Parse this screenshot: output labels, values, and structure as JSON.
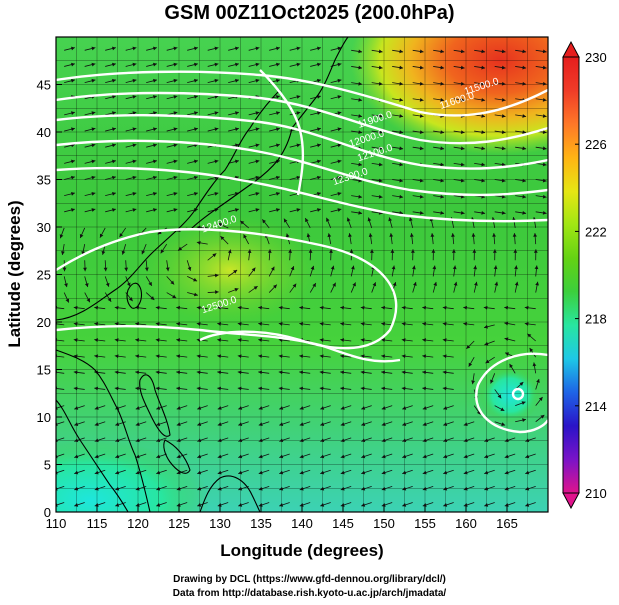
{
  "title": "GSM 00Z11Oct2025 (200.0hPa)",
  "x_axis": {
    "label": "Longitude (degrees)",
    "range": [
      110,
      170
    ],
    "ticks": [
      "110",
      "115",
      "120",
      "125",
      "130",
      "135",
      "140",
      "145",
      "150",
      "155",
      "160",
      "165"
    ],
    "tick_values": [
      110,
      115,
      120,
      125,
      130,
      135,
      140,
      145,
      150,
      155,
      160,
      165
    ]
  },
  "y_axis": {
    "label": "Latitude  (degrees)",
    "range": [
      0,
      50
    ],
    "ticks": [
      "0",
      "5",
      "10",
      "15",
      "20",
      "25",
      "30",
      "35",
      "40",
      "45"
    ],
    "tick_values": [
      0,
      5,
      10,
      15,
      20,
      25,
      30,
      35,
      40,
      45
    ]
  },
  "colorbar": {
    "min": 210,
    "max": 230,
    "labels": [
      "230",
      "226",
      "222",
      "218",
      "214",
      "210"
    ],
    "label_values": [
      230,
      226,
      222,
      218,
      214,
      210
    ],
    "colors": [
      "#e0148c",
      "#7a14c8",
      "#2a14c8",
      "#1e64e6",
      "#1ec8e6",
      "#28e6a0",
      "#3ccf3c",
      "#64d214",
      "#a0e614",
      "#e6e614",
      "#ffb414",
      "#ff7828",
      "#f03c28",
      "#e61e1e"
    ]
  },
  "contour_labels": [
    {
      "text": "11500.0",
      "lon": 162,
      "lat": 44.5
    },
    {
      "text": "11600.0",
      "lon": 159,
      "lat": 43
    },
    {
      "text": "11900.0",
      "lon": 149,
      "lat": 41
    },
    {
      "text": "12000.0",
      "lon": 148,
      "lat": 39
    },
    {
      "text": "12100.0",
      "lon": 149,
      "lat": 37.5
    },
    {
      "text": "12300.0",
      "lon": 146,
      "lat": 35
    },
    {
      "text": "12400.0",
      "lon": 130,
      "lat": 30
    },
    {
      "text": "12500.0",
      "lon": 130,
      "lat": 21.5
    }
  ],
  "credits": {
    "line1": "Drawing by DCL (https://www.gfd-dennou.org/library/dcl/)",
    "line2": "Data from http://database.rish.kyoto-u.ac.jp/arch/jmadata/"
  }
}
